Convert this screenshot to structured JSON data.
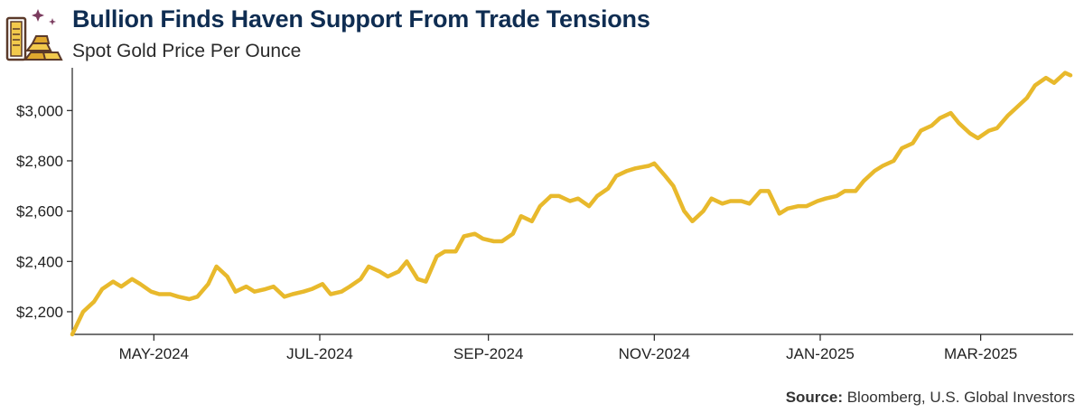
{
  "header": {
    "title": "Bullion Finds Haven Support From Trade Tensions",
    "subtitle": "Spot Gold Price Per Ounce",
    "logo_icon": "gold-bars-icon"
  },
  "source": {
    "label": "Source:",
    "text": " Bloomberg, U.S. Global Investors"
  },
  "colors": {
    "line": "#e8b92c",
    "title": "#0f2d52",
    "axis": "#222222"
  },
  "chart_data": {
    "type": "line",
    "title": "Bullion Finds Haven Support From Trade Tensions",
    "subtitle": "Spot Gold Price Per Ounce",
    "xlabel": "",
    "ylabel": "",
    "grid": false,
    "xlim": [
      "2024-04-01",
      "2025-04-04"
    ],
    "ylim": [
      2110,
      3170
    ],
    "x_ticks": [
      {
        "date": "2024-05-01",
        "label": "MAY-2024"
      },
      {
        "date": "2024-07-01",
        "label": "JUL-2024"
      },
      {
        "date": "2024-09-01",
        "label": "SEP-2024"
      },
      {
        "date": "2024-11-01",
        "label": "NOV-2024"
      },
      {
        "date": "2025-01-01",
        "label": "JAN-2025"
      },
      {
        "date": "2025-03-01",
        "label": "MAR-2025"
      }
    ],
    "y_ticks": [
      {
        "value": 2200,
        "label": "$2,200"
      },
      {
        "value": 2400,
        "label": "$2,400"
      },
      {
        "value": 2600,
        "label": "$2,600"
      },
      {
        "value": 2800,
        "label": "$2,800"
      },
      {
        "value": 3000,
        "label": "$3,000"
      }
    ],
    "series": [
      {
        "x": [
          "2024-04-01",
          "2024-04-05",
          "2024-04-09",
          "2024-04-12",
          "2024-04-16",
          "2024-04-19",
          "2024-04-23",
          "2024-04-26",
          "2024-04-30",
          "2024-05-03",
          "2024-05-07",
          "2024-05-10",
          "2024-05-14",
          "2024-05-17",
          "2024-05-21",
          "2024-05-24",
          "2024-05-28",
          "2024-05-31",
          "2024-06-04",
          "2024-06-07",
          "2024-06-11",
          "2024-06-14",
          "2024-06-18",
          "2024-06-21",
          "2024-06-25",
          "2024-06-28",
          "2024-07-02",
          "2024-07-05",
          "2024-07-09",
          "2024-07-12",
          "2024-07-16",
          "2024-07-19",
          "2024-07-23",
          "2024-07-26",
          "2024-07-30",
          "2024-08-02",
          "2024-08-06",
          "2024-08-09",
          "2024-08-13",
          "2024-08-16",
          "2024-08-20",
          "2024-08-23",
          "2024-08-27",
          "2024-08-30",
          "2024-09-03",
          "2024-09-06",
          "2024-09-10",
          "2024-09-13",
          "2024-09-17",
          "2024-09-20",
          "2024-09-24",
          "2024-09-27",
          "2024-10-01",
          "2024-10-04",
          "2024-10-08",
          "2024-10-11",
          "2024-10-15",
          "2024-10-18",
          "2024-10-22",
          "2024-10-25",
          "2024-10-30",
          "2024-11-01",
          "2024-11-05",
          "2024-11-08",
          "2024-11-12",
          "2024-11-15",
          "2024-11-19",
          "2024-11-22",
          "2024-11-26",
          "2024-11-29",
          "2024-12-03",
          "2024-12-06",
          "2024-12-10",
          "2024-12-13",
          "2024-12-17",
          "2024-12-20",
          "2024-12-24",
          "2024-12-27",
          "2024-12-31",
          "2025-01-03",
          "2025-01-07",
          "2025-01-10",
          "2025-01-14",
          "2025-01-17",
          "2025-01-21",
          "2025-01-24",
          "2025-01-28",
          "2025-01-31",
          "2025-02-04",
          "2025-02-07",
          "2025-02-11",
          "2025-02-14",
          "2025-02-18",
          "2025-02-21",
          "2025-02-25",
          "2025-02-28",
          "2025-03-04",
          "2025-03-07",
          "2025-03-11",
          "2025-03-14",
          "2025-03-18",
          "2025-03-21",
          "2025-03-25",
          "2025-03-28",
          "2025-04-01",
          "2025-04-03"
        ],
        "values": [
          2110,
          2200,
          2240,
          2290,
          2320,
          2300,
          2330,
          2310,
          2280,
          2270,
          2270,
          2260,
          2250,
          2260,
          2310,
          2380,
          2340,
          2280,
          2300,
          2280,
          2290,
          2300,
          2260,
          2270,
          2280,
          2290,
          2310,
          2270,
          2280,
          2300,
          2330,
          2380,
          2360,
          2340,
          2360,
          2400,
          2330,
          2320,
          2420,
          2440,
          2440,
          2500,
          2510,
          2490,
          2480,
          2480,
          2510,
          2580,
          2560,
          2620,
          2660,
          2660,
          2640,
          2650,
          2620,
          2660,
          2690,
          2740,
          2760,
          2770,
          2780,
          2790,
          2740,
          2700,
          2600,
          2560,
          2600,
          2650,
          2630,
          2640,
          2640,
          2630,
          2680,
          2680,
          2590,
          2610,
          2620,
          2620,
          2640,
          2650,
          2660,
          2680,
          2680,
          2720,
          2760,
          2780,
          2800,
          2850,
          2870,
          2920,
          2940,
          2970,
          2990,
          2950,
          2910,
          2890,
          2920,
          2930,
          2980,
          3010,
          3050,
          3100,
          3130,
          3110,
          3150,
          3140
        ]
      }
    ]
  }
}
